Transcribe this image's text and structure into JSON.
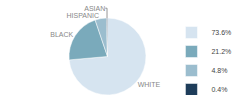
{
  "chart_data": {
    "type": "pie",
    "categories": [
      "WHITE",
      "BLACK",
      "HISPANIC",
      "ASIAN"
    ],
    "values": [
      73.6,
      21.2,
      4.8,
      0.4
    ],
    "value_labels": [
      "73.6%",
      "21.2%",
      "4.8%",
      "0.4%"
    ],
    "colors": [
      "#d6e4f0",
      "#7aaabb",
      "#9bbdce",
      "#1e3d5a"
    ],
    "legend": "right"
  }
}
